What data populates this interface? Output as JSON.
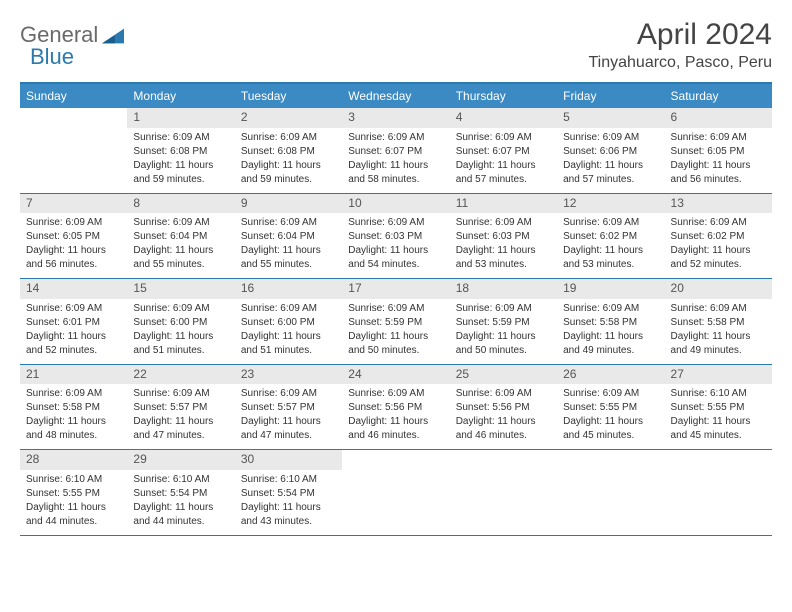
{
  "brand": {
    "part1": "General",
    "part2": "Blue"
  },
  "title": "April 2024",
  "location": "Tinyahuarco, Pasco, Peru",
  "colors": {
    "header_bar": "#3b8ac4",
    "rule": "#2a7ab0",
    "daynum_bg": "#e9e9e9",
    "text": "#333333"
  },
  "dow": [
    "Sunday",
    "Monday",
    "Tuesday",
    "Wednesday",
    "Thursday",
    "Friday",
    "Saturday"
  ],
  "weeks": [
    [
      null,
      {
        "n": "1",
        "sr": "Sunrise: 6:09 AM",
        "ss": "Sunset: 6:08 PM",
        "d1": "Daylight: 11 hours",
        "d2": "and 59 minutes."
      },
      {
        "n": "2",
        "sr": "Sunrise: 6:09 AM",
        "ss": "Sunset: 6:08 PM",
        "d1": "Daylight: 11 hours",
        "d2": "and 59 minutes."
      },
      {
        "n": "3",
        "sr": "Sunrise: 6:09 AM",
        "ss": "Sunset: 6:07 PM",
        "d1": "Daylight: 11 hours",
        "d2": "and 58 minutes."
      },
      {
        "n": "4",
        "sr": "Sunrise: 6:09 AM",
        "ss": "Sunset: 6:07 PM",
        "d1": "Daylight: 11 hours",
        "d2": "and 57 minutes."
      },
      {
        "n": "5",
        "sr": "Sunrise: 6:09 AM",
        "ss": "Sunset: 6:06 PM",
        "d1": "Daylight: 11 hours",
        "d2": "and 57 minutes."
      },
      {
        "n": "6",
        "sr": "Sunrise: 6:09 AM",
        "ss": "Sunset: 6:05 PM",
        "d1": "Daylight: 11 hours",
        "d2": "and 56 minutes."
      }
    ],
    [
      {
        "n": "7",
        "sr": "Sunrise: 6:09 AM",
        "ss": "Sunset: 6:05 PM",
        "d1": "Daylight: 11 hours",
        "d2": "and 56 minutes."
      },
      {
        "n": "8",
        "sr": "Sunrise: 6:09 AM",
        "ss": "Sunset: 6:04 PM",
        "d1": "Daylight: 11 hours",
        "d2": "and 55 minutes."
      },
      {
        "n": "9",
        "sr": "Sunrise: 6:09 AM",
        "ss": "Sunset: 6:04 PM",
        "d1": "Daylight: 11 hours",
        "d2": "and 55 minutes."
      },
      {
        "n": "10",
        "sr": "Sunrise: 6:09 AM",
        "ss": "Sunset: 6:03 PM",
        "d1": "Daylight: 11 hours",
        "d2": "and 54 minutes."
      },
      {
        "n": "11",
        "sr": "Sunrise: 6:09 AM",
        "ss": "Sunset: 6:03 PM",
        "d1": "Daylight: 11 hours",
        "d2": "and 53 minutes."
      },
      {
        "n": "12",
        "sr": "Sunrise: 6:09 AM",
        "ss": "Sunset: 6:02 PM",
        "d1": "Daylight: 11 hours",
        "d2": "and 53 minutes."
      },
      {
        "n": "13",
        "sr": "Sunrise: 6:09 AM",
        "ss": "Sunset: 6:02 PM",
        "d1": "Daylight: 11 hours",
        "d2": "and 52 minutes."
      }
    ],
    [
      {
        "n": "14",
        "sr": "Sunrise: 6:09 AM",
        "ss": "Sunset: 6:01 PM",
        "d1": "Daylight: 11 hours",
        "d2": "and 52 minutes."
      },
      {
        "n": "15",
        "sr": "Sunrise: 6:09 AM",
        "ss": "Sunset: 6:00 PM",
        "d1": "Daylight: 11 hours",
        "d2": "and 51 minutes."
      },
      {
        "n": "16",
        "sr": "Sunrise: 6:09 AM",
        "ss": "Sunset: 6:00 PM",
        "d1": "Daylight: 11 hours",
        "d2": "and 51 minutes."
      },
      {
        "n": "17",
        "sr": "Sunrise: 6:09 AM",
        "ss": "Sunset: 5:59 PM",
        "d1": "Daylight: 11 hours",
        "d2": "and 50 minutes."
      },
      {
        "n": "18",
        "sr": "Sunrise: 6:09 AM",
        "ss": "Sunset: 5:59 PM",
        "d1": "Daylight: 11 hours",
        "d2": "and 50 minutes."
      },
      {
        "n": "19",
        "sr": "Sunrise: 6:09 AM",
        "ss": "Sunset: 5:58 PM",
        "d1": "Daylight: 11 hours",
        "d2": "and 49 minutes."
      },
      {
        "n": "20",
        "sr": "Sunrise: 6:09 AM",
        "ss": "Sunset: 5:58 PM",
        "d1": "Daylight: 11 hours",
        "d2": "and 49 minutes."
      }
    ],
    [
      {
        "n": "21",
        "sr": "Sunrise: 6:09 AM",
        "ss": "Sunset: 5:58 PM",
        "d1": "Daylight: 11 hours",
        "d2": "and 48 minutes."
      },
      {
        "n": "22",
        "sr": "Sunrise: 6:09 AM",
        "ss": "Sunset: 5:57 PM",
        "d1": "Daylight: 11 hours",
        "d2": "and 47 minutes."
      },
      {
        "n": "23",
        "sr": "Sunrise: 6:09 AM",
        "ss": "Sunset: 5:57 PM",
        "d1": "Daylight: 11 hours",
        "d2": "and 47 minutes."
      },
      {
        "n": "24",
        "sr": "Sunrise: 6:09 AM",
        "ss": "Sunset: 5:56 PM",
        "d1": "Daylight: 11 hours",
        "d2": "and 46 minutes."
      },
      {
        "n": "25",
        "sr": "Sunrise: 6:09 AM",
        "ss": "Sunset: 5:56 PM",
        "d1": "Daylight: 11 hours",
        "d2": "and 46 minutes."
      },
      {
        "n": "26",
        "sr": "Sunrise: 6:09 AM",
        "ss": "Sunset: 5:55 PM",
        "d1": "Daylight: 11 hours",
        "d2": "and 45 minutes."
      },
      {
        "n": "27",
        "sr": "Sunrise: 6:10 AM",
        "ss": "Sunset: 5:55 PM",
        "d1": "Daylight: 11 hours",
        "d2": "and 45 minutes."
      }
    ],
    [
      {
        "n": "28",
        "sr": "Sunrise: 6:10 AM",
        "ss": "Sunset: 5:55 PM",
        "d1": "Daylight: 11 hours",
        "d2": "and 44 minutes."
      },
      {
        "n": "29",
        "sr": "Sunrise: 6:10 AM",
        "ss": "Sunset: 5:54 PM",
        "d1": "Daylight: 11 hours",
        "d2": "and 44 minutes."
      },
      {
        "n": "30",
        "sr": "Sunrise: 6:10 AM",
        "ss": "Sunset: 5:54 PM",
        "d1": "Daylight: 11 hours",
        "d2": "and 43 minutes."
      },
      null,
      null,
      null,
      null
    ]
  ]
}
